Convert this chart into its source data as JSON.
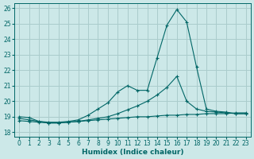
{
  "xlabel": "Humidex (Indice chaleur)",
  "bg_color": "#cce8e8",
  "grid_color": "#aacccc",
  "line_color": "#006666",
  "xlim": [
    -0.5,
    23.5
  ],
  "ylim": [
    17.7,
    26.3
  ],
  "xticks": [
    0,
    1,
    2,
    3,
    4,
    5,
    6,
    7,
    8,
    9,
    10,
    11,
    12,
    13,
    14,
    15,
    16,
    17,
    18,
    19,
    20,
    21,
    22,
    23
  ],
  "yticks": [
    18,
    19,
    20,
    21,
    22,
    23,
    24,
    25,
    26
  ],
  "line1_x": [
    0,
    1,
    2,
    3,
    4,
    5,
    6,
    7,
    8,
    9,
    10,
    11,
    12,
    13,
    14,
    15,
    16,
    17,
    18,
    19,
    20,
    21,
    22,
    23
  ],
  "line1_y": [
    18.75,
    18.7,
    18.65,
    18.6,
    18.6,
    18.65,
    18.7,
    18.75,
    18.8,
    18.85,
    18.9,
    18.95,
    19.0,
    19.0,
    19.05,
    19.1,
    19.1,
    19.15,
    19.15,
    19.2,
    19.2,
    19.2,
    19.25,
    19.25
  ],
  "line2_x": [
    0,
    1,
    2,
    3,
    4,
    5,
    6,
    7,
    8,
    9,
    10,
    11,
    12,
    13,
    14,
    15,
    16,
    17,
    18,
    19,
    20,
    21,
    22,
    23
  ],
  "line2_y": [
    18.9,
    18.8,
    18.7,
    18.6,
    18.6,
    18.65,
    18.7,
    18.8,
    18.9,
    19.0,
    19.2,
    19.45,
    19.7,
    20.0,
    20.4,
    20.9,
    21.6,
    20.0,
    19.5,
    19.35,
    19.3,
    19.25,
    19.2,
    19.2
  ],
  "line3_x": [
    0,
    1,
    2,
    3,
    4,
    5,
    6,
    7,
    8,
    9,
    10,
    11,
    12,
    13,
    14,
    15,
    16,
    17,
    18,
    19,
    20,
    21,
    22,
    23
  ],
  "line3_y": [
    19.0,
    18.95,
    18.7,
    18.65,
    18.65,
    18.7,
    18.8,
    19.1,
    19.5,
    19.9,
    20.6,
    21.0,
    20.7,
    20.7,
    22.8,
    24.9,
    25.9,
    25.1,
    22.2,
    19.5,
    19.35,
    19.3,
    19.2,
    19.2
  ]
}
